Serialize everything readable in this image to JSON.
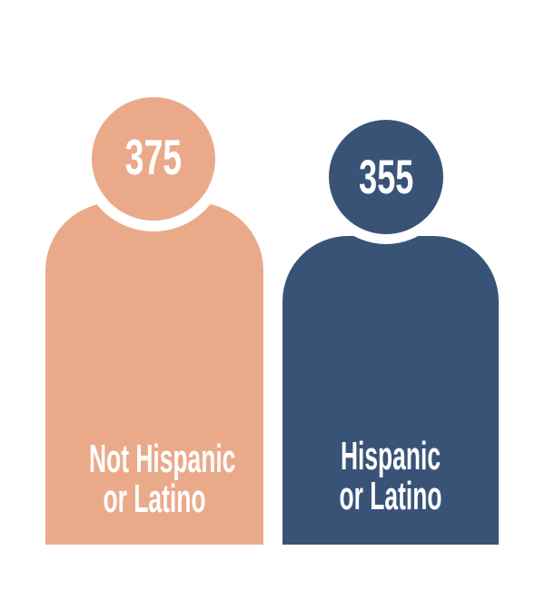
{
  "chart_data": {
    "type": "pictogram",
    "categories": [
      "Not Hispanic or Latino",
      "Hispanic or Latino"
    ],
    "values": [
      375,
      355
    ],
    "series": [
      {
        "name": "Not Hispanic or Latino",
        "value": 375,
        "color": "#EAAA8A"
      },
      {
        "name": "Hispanic or Latino",
        "value": 355,
        "color": "#395377"
      }
    ],
    "data_labels": "on",
    "legend": "none",
    "background": "#FFFFFF",
    "label_text_color": "#FFFFFF"
  },
  "figures": [
    {
      "value": "375",
      "label_line1": "Not Hispanic",
      "label_line2": "or Latino",
      "color": "#EAAA8A"
    },
    {
      "value": "355",
      "label_line1": "Hispanic",
      "label_line2": "or Latino",
      "color": "#395377"
    }
  ]
}
